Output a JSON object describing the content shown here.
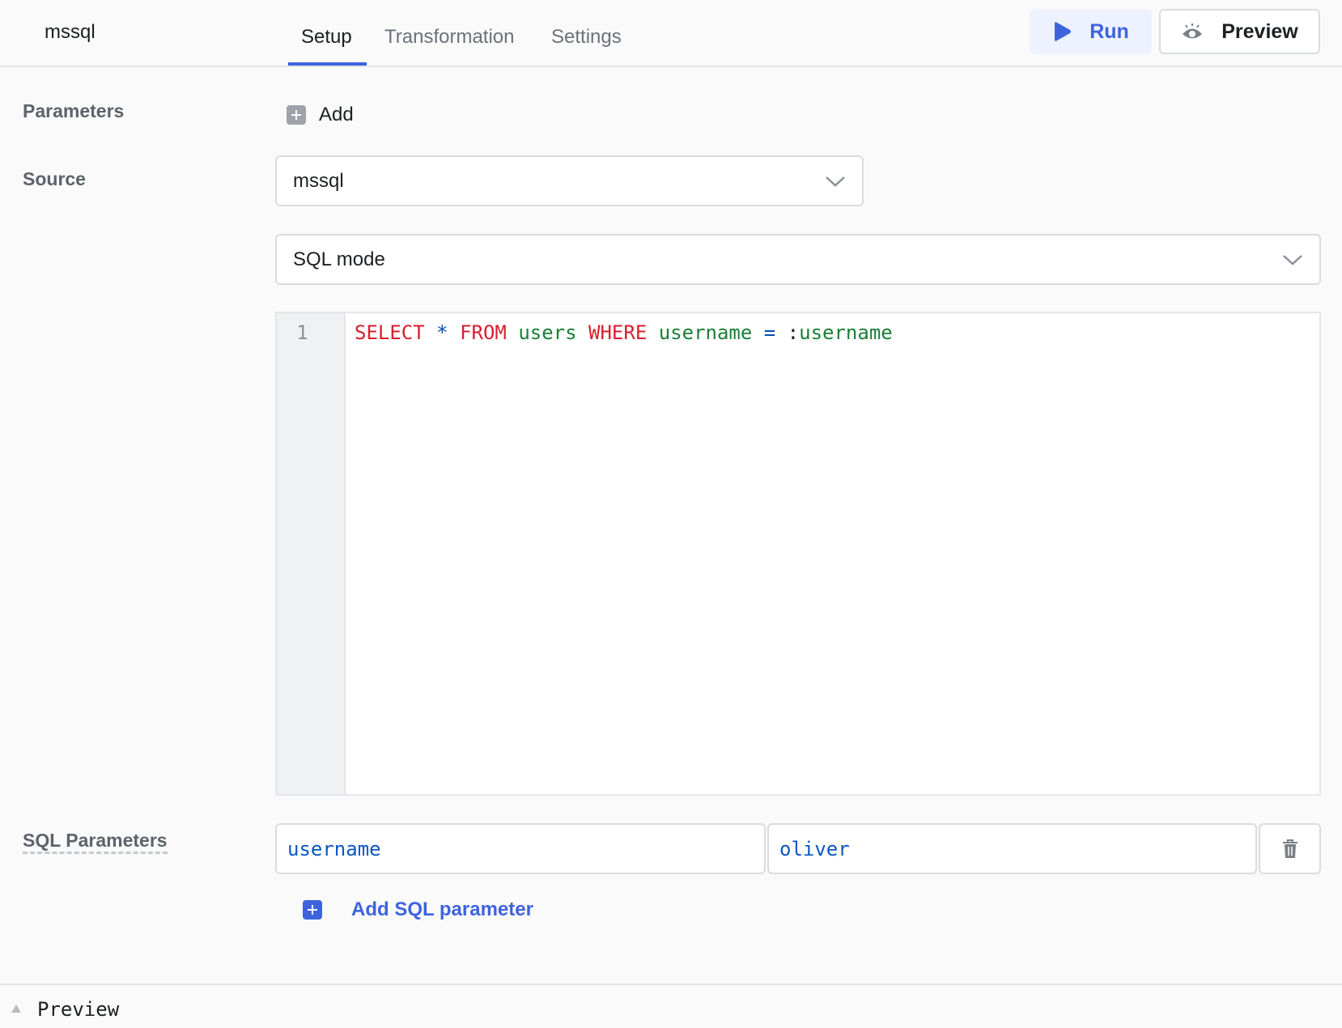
{
  "header": {
    "title": "mssql",
    "tabs": [
      {
        "label": "Setup",
        "active": true
      },
      {
        "label": "Transformation"
      },
      {
        "label": "Settings"
      }
    ],
    "run_label": "Run",
    "preview_label": "Preview"
  },
  "parameters": {
    "label": "Parameters",
    "add_label": "Add"
  },
  "source": {
    "label": "Source",
    "value": "mssql",
    "mode": "SQL mode"
  },
  "editor": {
    "line_numbers": [
      "1"
    ],
    "tokens": [
      {
        "t": "SELECT",
        "c": "kw"
      },
      {
        "t": " "
      },
      {
        "t": "*",
        "c": "op"
      },
      {
        "t": " "
      },
      {
        "t": "FROM",
        "c": "kw"
      },
      {
        "t": " "
      },
      {
        "t": "users",
        "c": "id"
      },
      {
        "t": " "
      },
      {
        "t": "WHERE",
        "c": "kw"
      },
      {
        "t": " "
      },
      {
        "t": "username",
        "c": "id"
      },
      {
        "t": " "
      },
      {
        "t": "=",
        "c": "op"
      },
      {
        "t": " "
      },
      {
        "t": ":",
        "c": "pl"
      },
      {
        "t": "username",
        "c": "id"
      }
    ]
  },
  "sql_parameters": {
    "label": "SQL Parameters",
    "rows": [
      {
        "key": "username",
        "value": "oliver"
      }
    ],
    "add_label": "Add SQL parameter"
  },
  "footer": {
    "preview_label": "Preview"
  },
  "colors": {
    "accent": "#3e63dd",
    "keyword": "#d81f2f",
    "identifier": "#1a7f37"
  }
}
